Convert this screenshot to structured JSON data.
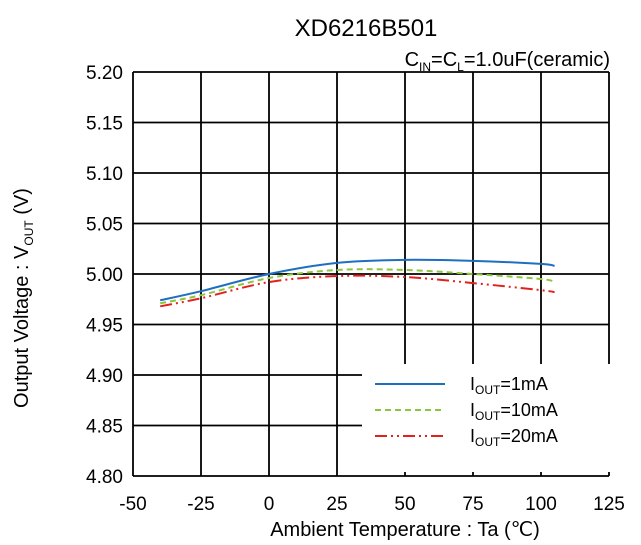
{
  "chart_data": {
    "type": "line",
    "title": "XD6216B501",
    "subtitle": {
      "prefix": "C",
      "sub1": "IN",
      "mid": "=C",
      "sub2": "L",
      "suffix": "=1.0uF(ceramic)"
    },
    "xlabel": "Ambient Temperature  : Ta (℃)",
    "ylabel": {
      "prefix": "Output Voltage : V",
      "sub": "OUT",
      "suffix": " (V)"
    },
    "xlim": [
      -50,
      125
    ],
    "ylim": [
      4.8,
      5.2
    ],
    "x_ticks": [
      "-50",
      "-25",
      "0",
      "25",
      "50",
      "75",
      "100",
      "125"
    ],
    "y_ticks": [
      "5.20",
      "5.15",
      "5.10",
      "5.05",
      "5.00",
      "4.95",
      "4.90",
      "4.85",
      "4.80"
    ],
    "grid": true,
    "legend_position": "bottom-right",
    "series": [
      {
        "name": "I_OUT=1mA",
        "legend": {
          "prefix": "I",
          "sub": "OUT",
          "suffix": "=1mA"
        },
        "color": "#1f6fc0",
        "dash": "solid",
        "x": [
          -40,
          -25,
          0,
          25,
          50,
          75,
          100,
          105
        ],
        "y": [
          4.974,
          4.983,
          5.0,
          5.011,
          5.014,
          5.013,
          5.01,
          5.008
        ]
      },
      {
        "name": "I_OUT=10mA",
        "legend": {
          "prefix": "I",
          "sub": "OUT",
          "suffix": "=10mA"
        },
        "color": "#8cc63f",
        "dash": "dashed",
        "x": [
          -40,
          -25,
          0,
          25,
          50,
          75,
          100,
          105
        ],
        "y": [
          4.971,
          4.979,
          4.996,
          5.004,
          5.004,
          5.0,
          4.995,
          4.992
        ]
      },
      {
        "name": "I_OUT=20mA",
        "legend": {
          "prefix": "I",
          "sub": "OUT",
          "suffix": "=20mA"
        },
        "color": "#e3211c",
        "dash": "dash-dot-dot",
        "x": [
          -40,
          -25,
          0,
          25,
          50,
          75,
          100,
          105
        ],
        "y": [
          4.968,
          4.976,
          4.992,
          4.998,
          4.997,
          4.991,
          4.984,
          4.982
        ]
      }
    ]
  }
}
